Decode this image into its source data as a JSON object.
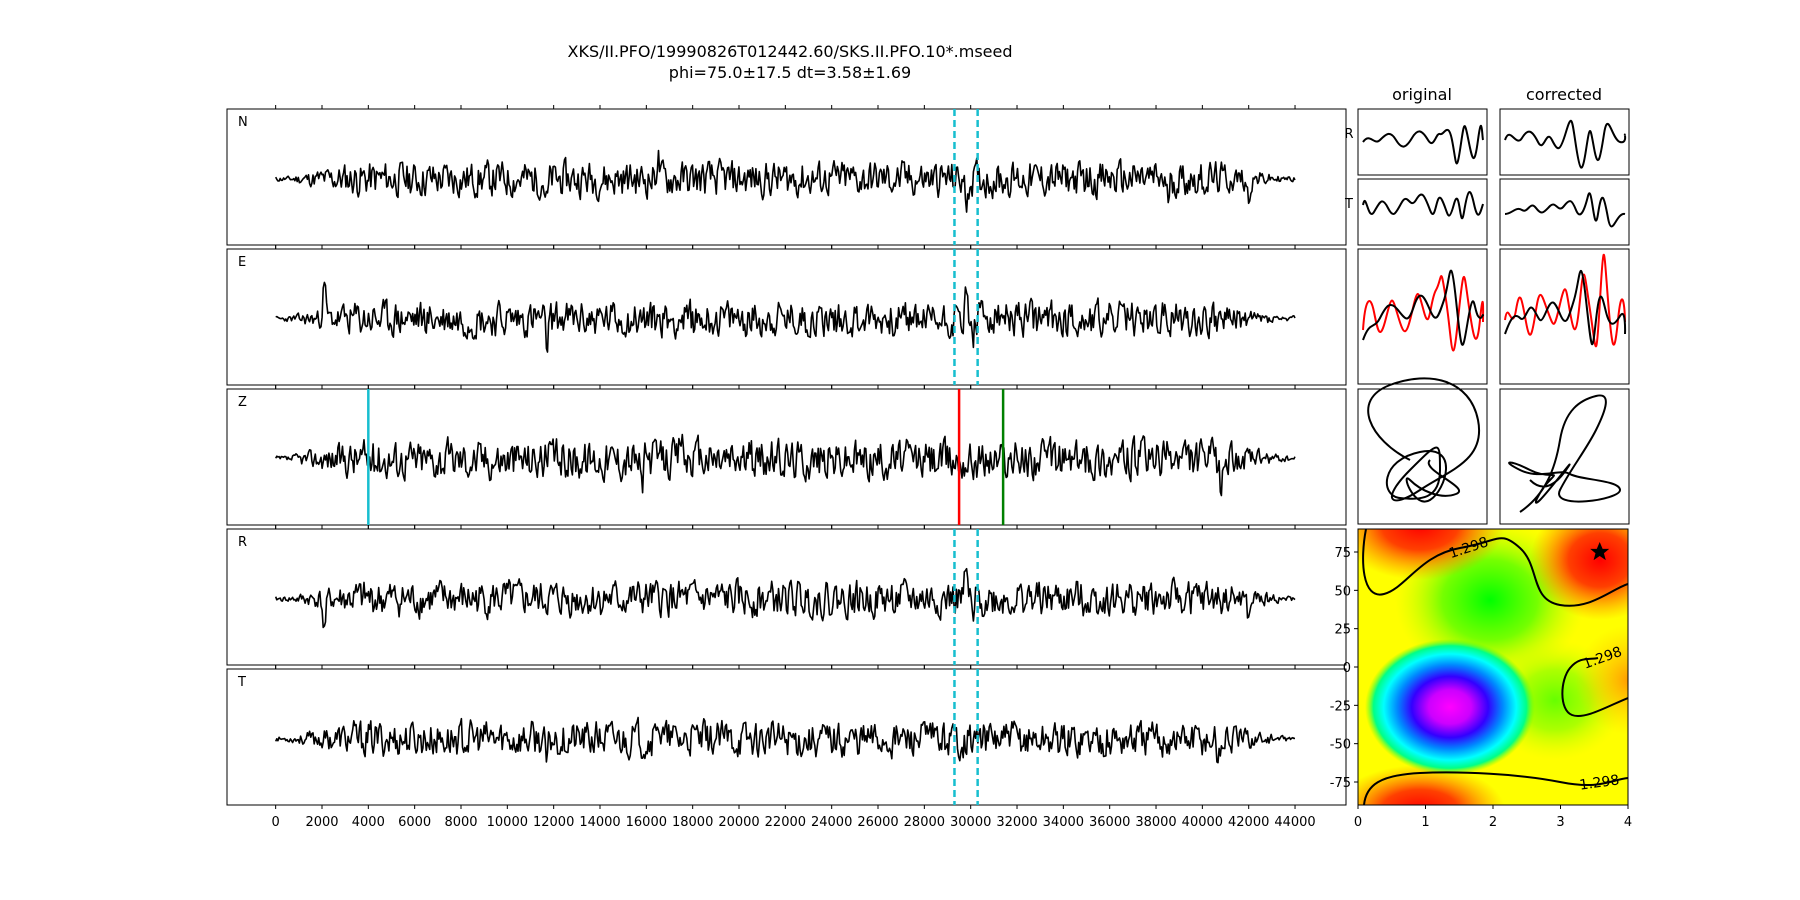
{
  "chart_data": {
    "type": "line",
    "title": "XKS/II.PFO/19990826T012442.60/SKS.II.PFO.10*.mseed",
    "subtitle": "phi=75.0±17.5 dt=3.58±1.69",
    "x_ticks": [
      0,
      2000,
      4000,
      6000,
      8000,
      10000,
      12000,
      14000,
      16000,
      18000,
      20000,
      22000,
      24000,
      26000,
      28000,
      30000,
      32000,
      34000,
      36000,
      38000,
      40000,
      42000,
      44000
    ],
    "xlim": [
      -2100,
      46200
    ],
    "traces": [
      {
        "name": "N",
        "amp": 0.9,
        "seed": 11,
        "spikes": [
          [
            11700,
            -1.1
          ],
          [
            16500,
            1.0
          ],
          [
            29800,
            -1.0
          ],
          [
            38500,
            -1.0
          ],
          [
            42000,
            -0.9
          ]
        ]
      },
      {
        "name": "E",
        "amp": 0.9,
        "seed": 23,
        "spikes": [
          [
            2100,
            1.6
          ],
          [
            11700,
            -1.2
          ],
          [
            29800,
            1.0
          ],
          [
            30100,
            -0.8
          ]
        ]
      },
      {
        "name": "Z",
        "amp": 1.0,
        "seed": 37,
        "spikes": [
          [
            15800,
            -1.2
          ],
          [
            17500,
            1.1
          ],
          [
            40800,
            -1.2
          ]
        ]
      },
      {
        "name": "R",
        "amp": 0.9,
        "seed": 41,
        "spikes": [
          [
            2100,
            -1.4
          ],
          [
            29800,
            1.0
          ],
          [
            30100,
            -1.1
          ],
          [
            42000,
            -1.0
          ]
        ]
      },
      {
        "name": "T",
        "amp": 0.9,
        "seed": 53,
        "spikes": [
          [
            11700,
            -1.2
          ],
          [
            16500,
            1.1
          ],
          [
            40700,
            -0.9
          ]
        ]
      }
    ],
    "window_markers": {
      "start": 29300,
      "end": 30300,
      "color": "#17becf"
    },
    "z_markers": [
      {
        "x": 4000,
        "color": "#17becf"
      },
      {
        "x": 29500,
        "color": "#ff0000"
      },
      {
        "x": 31400,
        "color": "#008000"
      }
    ],
    "small_panels": {
      "col_titles": [
        "original",
        "corrected"
      ],
      "row_labels": [
        "R",
        "T"
      ]
    },
    "error_surface": {
      "x_ticks": [
        0,
        1,
        2,
        3,
        4
      ],
      "y_ticks": [
        75,
        50,
        25,
        0,
        -25,
        -50,
        -75
      ],
      "xlim": [
        0,
        4
      ],
      "ylim": [
        -90,
        90
      ],
      "contour_label": "1.298",
      "best": {
        "dt": 3.58,
        "phi": 75.0
      }
    }
  }
}
